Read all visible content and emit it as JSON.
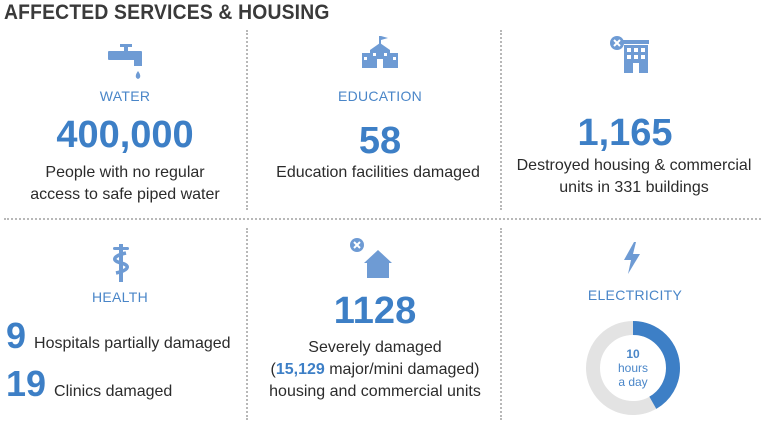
{
  "title": "AFFECTED SERVICES & HOUSING",
  "water": {
    "label": "WATER",
    "value": "400,000",
    "desc_line1": "People with no regular",
    "desc_line2": "access to safe piped water"
  },
  "education": {
    "label": "EDUCATION",
    "value": "58",
    "desc": "Education facilities damaged"
  },
  "housing_destroyed": {
    "value": "1,165",
    "desc_line1": "Destroyed housing & commercial",
    "desc_line2": "units in 331 buildings"
  },
  "health": {
    "label": "HEALTH",
    "hospitals_value": "9",
    "hospitals_text": "Hospitals partially damaged",
    "clinics_value": "19",
    "clinics_text": "Clinics damaged"
  },
  "housing_damaged": {
    "value": "1128",
    "desc_line1": "Severely damaged",
    "desc_open": "(",
    "desc_highlight": "15,129",
    "desc_rest": " major/mini damaged)",
    "desc_line3": "housing and commercial units"
  },
  "electricity": {
    "label": "ELECTRICITY",
    "hours": "10",
    "hours_unit": "hours",
    "per": "a day",
    "fraction_of_day": 0.4167
  },
  "colors": {
    "accent": "#3d7fc6",
    "icon": "#6e9bd4",
    "donut_track": "#e3e3e3",
    "divider": "#b8b8b8"
  },
  "icons": [
    "faucet-icon",
    "school-icon",
    "destroyed-building-icon",
    "caduceus-icon",
    "damaged-house-icon",
    "lightning-icon"
  ]
}
